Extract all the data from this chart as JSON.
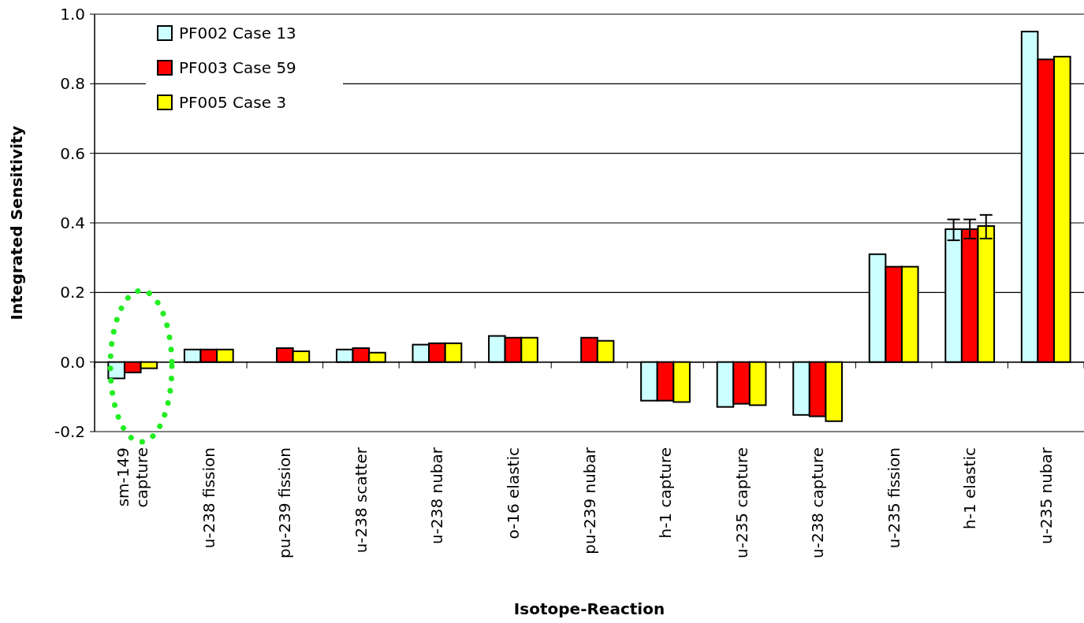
{
  "chart_data": {
    "type": "bar",
    "xlabel": "Isotope-Reaction",
    "ylabel": "Integrated Sensitivity",
    "categories": [
      "sm-149\ncapture",
      "u-238 fission",
      "pu-239 fission",
      "u-238 scatter",
      "u-238 nubar",
      "o-16 elastic",
      "pu-239 nubar",
      "h-1 capture",
      "u-235 capture",
      "u-238 capture",
      "u-235 fission",
      "h-1 elastic",
      "u-235 nubar"
    ],
    "series": [
      {
        "name": "PF002 Case 13",
        "color": "#ccffff",
        "values": [
          -0.047,
          0.036,
          null,
          0.036,
          0.05,
          0.075,
          null,
          -0.111,
          -0.129,
          -0.152,
          0.31,
          0.382,
          0.95
        ],
        "errors": [
          null,
          null,
          null,
          null,
          null,
          null,
          null,
          null,
          null,
          null,
          null,
          [
            0.35,
            0.41
          ],
          null
        ]
      },
      {
        "name": "PF003 Case 59",
        "color": "#ff0000",
        "values": [
          -0.03,
          0.036,
          0.04,
          0.04,
          0.054,
          0.07,
          0.07,
          -0.111,
          -0.12,
          -0.156,
          0.274,
          0.382,
          0.87
        ],
        "errors": [
          null,
          null,
          null,
          null,
          null,
          null,
          null,
          null,
          null,
          null,
          null,
          [
            0.355,
            0.41
          ],
          null
        ]
      },
      {
        "name": "PF005 Case 3",
        "color": "#ffff00",
        "values": [
          -0.018,
          0.036,
          0.031,
          0.027,
          0.054,
          0.07,
          0.061,
          -0.115,
          -0.124,
          -0.17,
          0.274,
          0.391,
          0.878
        ],
        "errors": [
          null,
          null,
          null,
          null,
          null,
          null,
          null,
          null,
          null,
          null,
          null,
          [
            0.355,
            0.423
          ],
          null
        ]
      }
    ],
    "ylim": [
      -0.2,
      1.0
    ],
    "yticks": [
      {
        "value": -0.2,
        "label": "-0.2"
      },
      {
        "value": 0,
        "label": "0.0"
      },
      {
        "value": 0.2,
        "label": "0.2"
      },
      {
        "value": 0.4,
        "label": "0.4"
      },
      {
        "value": 0.6,
        "label": "0.6"
      },
      {
        "value": 0.8,
        "label": "0.8"
      },
      {
        "value": 1,
        "label": "1.0"
      }
    ],
    "grid": "y",
    "legend": "top left"
  }
}
